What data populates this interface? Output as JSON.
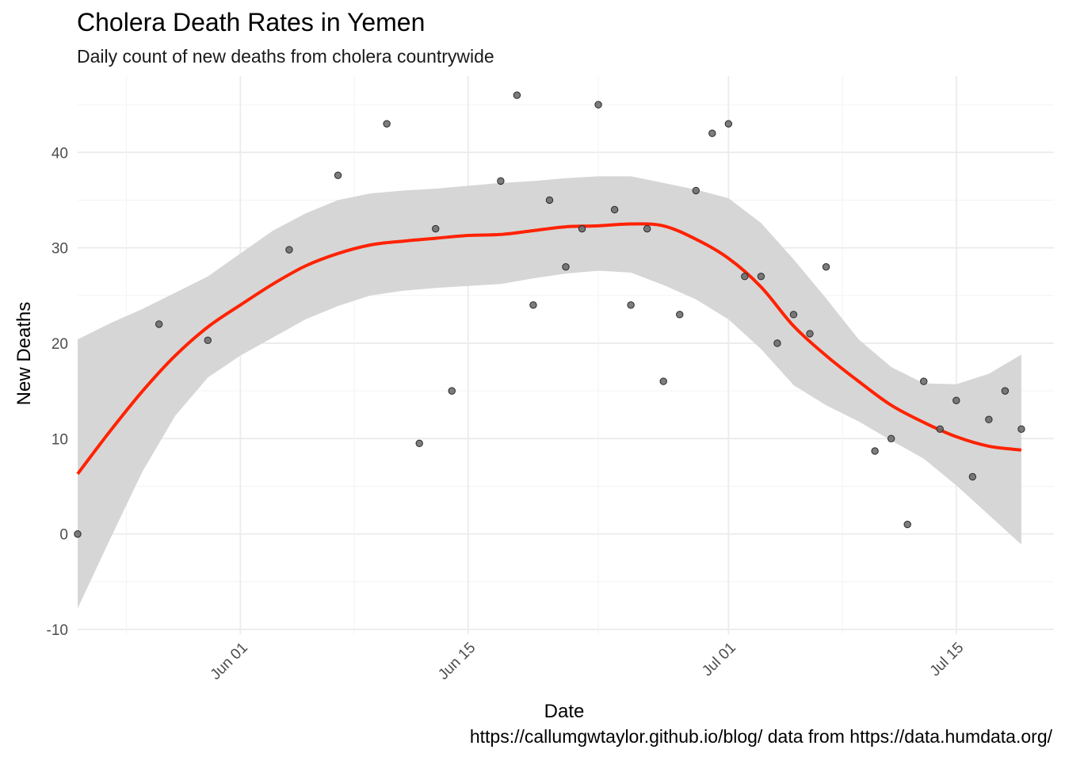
{
  "chart_data": {
    "type": "scatter",
    "title": "Cholera Death Rates in Yemen",
    "subtitle": "Daily count of new deaths from cholera countrywide",
    "xlabel": "Date",
    "ylabel": "New Deaths",
    "caption": "https://callumgwtaylor.github.io/blog/ data from https://data.humdata.org/",
    "x_axis": {
      "type": "date",
      "lim": [
        "2017-05-22",
        "2017-07-21"
      ],
      "ticks": [
        {
          "date": "2017-06-01",
          "label": "Jun 01"
        },
        {
          "date": "2017-06-15",
          "label": "Jun 15"
        },
        {
          "date": "2017-07-01",
          "label": "Jul 01"
        },
        {
          "date": "2017-07-15",
          "label": "Jul 15"
        }
      ],
      "tick_label_rotation": -45
    },
    "y_axis": {
      "lim": [
        -10.5,
        48
      ],
      "ticks": [
        -10,
        0,
        10,
        20,
        30,
        40
      ]
    },
    "grid": true,
    "theme": "minimal",
    "points": [
      {
        "x": "2017-05-22",
        "y": 0
      },
      {
        "x": "2017-05-27",
        "y": 22
      },
      {
        "x": "2017-05-30",
        "y": 20.3
      },
      {
        "x": "2017-06-04",
        "y": 29.8
      },
      {
        "x": "2017-06-07",
        "y": 37.6
      },
      {
        "x": "2017-06-10",
        "y": 43
      },
      {
        "x": "2017-06-12",
        "y": 9.5
      },
      {
        "x": "2017-06-13",
        "y": 32
      },
      {
        "x": "2017-06-14",
        "y": 15
      },
      {
        "x": "2017-06-17",
        "y": 37
      },
      {
        "x": "2017-06-18",
        "y": 46
      },
      {
        "x": "2017-06-19",
        "y": 24
      },
      {
        "x": "2017-06-20",
        "y": 35
      },
      {
        "x": "2017-06-21",
        "y": 28
      },
      {
        "x": "2017-06-22",
        "y": 32
      },
      {
        "x": "2017-06-23",
        "y": 45
      },
      {
        "x": "2017-06-24",
        "y": 34
      },
      {
        "x": "2017-06-25",
        "y": 24
      },
      {
        "x": "2017-06-26",
        "y": 32
      },
      {
        "x": "2017-06-27",
        "y": 16
      },
      {
        "x": "2017-06-28",
        "y": 23
      },
      {
        "x": "2017-06-29",
        "y": 36
      },
      {
        "x": "2017-06-30",
        "y": 42
      },
      {
        "x": "2017-07-01",
        "y": 43
      },
      {
        "x": "2017-07-02",
        "y": 27
      },
      {
        "x": "2017-07-03",
        "y": 27
      },
      {
        "x": "2017-07-04",
        "y": 20
      },
      {
        "x": "2017-07-05",
        "y": 23
      },
      {
        "x": "2017-07-06",
        "y": 21
      },
      {
        "x": "2017-07-07",
        "y": 28
      },
      {
        "x": "2017-07-10",
        "y": 8.7
      },
      {
        "x": "2017-07-11",
        "y": 10
      },
      {
        "x": "2017-07-12",
        "y": 1
      },
      {
        "x": "2017-07-13",
        "y": 16
      },
      {
        "x": "2017-07-14",
        "y": 11
      },
      {
        "x": "2017-07-15",
        "y": 14
      },
      {
        "x": "2017-07-16",
        "y": 6
      },
      {
        "x": "2017-07-17",
        "y": 12
      },
      {
        "x": "2017-07-18",
        "y": 15
      },
      {
        "x": "2017-07-19",
        "y": 11
      }
    ],
    "smooth": {
      "method": "loess",
      "color": "#ff2200",
      "ribbon_color": "#d6d6d6",
      "x": [
        "2017-05-22",
        "2017-05-24",
        "2017-05-26",
        "2017-05-28",
        "2017-05-30",
        "2017-06-01",
        "2017-06-03",
        "2017-06-05",
        "2017-06-07",
        "2017-06-09",
        "2017-06-11",
        "2017-06-13",
        "2017-06-15",
        "2017-06-17",
        "2017-06-19",
        "2017-06-21",
        "2017-06-23",
        "2017-06-25",
        "2017-06-27",
        "2017-06-29",
        "2017-07-01",
        "2017-07-03",
        "2017-07-05",
        "2017-07-07",
        "2017-07-09",
        "2017-07-11",
        "2017-07-13",
        "2017-07-15",
        "2017-07-17",
        "2017-07-19"
      ],
      "fit": [
        6.3,
        10.8,
        15.0,
        18.7,
        21.7,
        24.0,
        26.2,
        28.1,
        29.4,
        30.3,
        30.7,
        31.0,
        31.3,
        31.4,
        31.8,
        32.2,
        32.3,
        32.5,
        32.3,
        30.9,
        28.9,
        25.9,
        21.8,
        18.7,
        16.0,
        13.5,
        11.7,
        10.2,
        9.2,
        8.8
      ],
      "lower": [
        -7.8,
        -0.5,
        6.6,
        12.4,
        16.4,
        18.7,
        20.6,
        22.5,
        23.9,
        25.0,
        25.5,
        25.8,
        26.0,
        26.2,
        26.8,
        27.3,
        27.6,
        27.4,
        26.1,
        24.6,
        22.5,
        19.4,
        15.6,
        13.5,
        11.8,
        9.8,
        7.9,
        5.1,
        2.0,
        -1.1
      ],
      "upper": [
        20.4,
        22.1,
        23.6,
        25.3,
        27.0,
        29.4,
        31.8,
        33.6,
        35.0,
        35.7,
        36.0,
        36.2,
        36.5,
        36.8,
        37.0,
        37.3,
        37.5,
        37.5,
        36.8,
        36.1,
        35.2,
        32.6,
        28.8,
        24.7,
        20.4,
        17.5,
        15.8,
        15.7,
        16.8,
        18.8
      ]
    }
  }
}
